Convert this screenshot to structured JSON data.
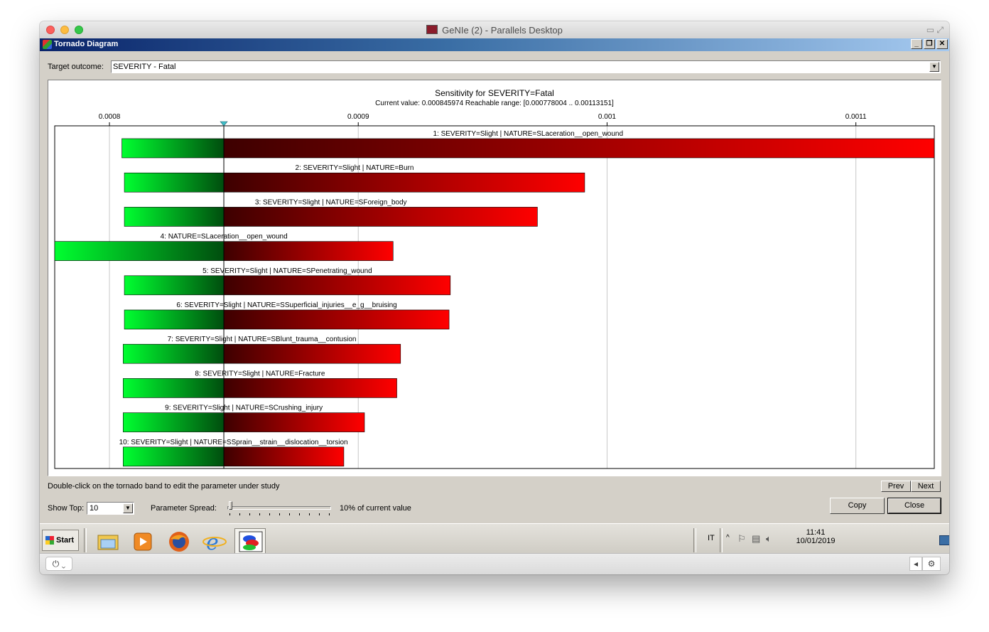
{
  "window": {
    "mac_title": "GeNIe (2) - Parallels Desktop",
    "dialog_title": "Tornado Diagram"
  },
  "target": {
    "label": "Target outcome:",
    "value": "SEVERITY - Fatal"
  },
  "chart_data": {
    "type": "tornado",
    "title": "Sensitivity for SEVERITY=Fatal",
    "subtitle": "Current value: 0.000845974  Reachable range: [0.000778004 .. 0.00113151]",
    "current_value": 0.000845974,
    "xlim": [
      0.000778004,
      0.00113151
    ],
    "x_ticks": [
      0.0008,
      0.0009,
      0.001,
      0.0011
    ],
    "x_tick_labels": [
      "0.0008",
      "0.0009",
      "0.001",
      "0.0011"
    ],
    "grid": true,
    "colors": {
      "low": "#00ff30",
      "low_dark": "#004d0e",
      "high_dark": "#3d0000",
      "high": "#ff0000"
    },
    "bars": [
      {
        "label": "1: SEVERITY=Slight | NATURE=SLaceration__open_wound",
        "low": 0.000805,
        "high": 0.00113151
      },
      {
        "label": "2: SEVERITY=Slight | NATURE=Burn",
        "low": 0.000806,
        "high": 0.000991
      },
      {
        "label": "3: SEVERITY=Slight | NATURE=SForeign_body",
        "low": 0.000806,
        "high": 0.000972
      },
      {
        "label": "4: NATURE=SLaceration__open_wound",
        "low": 0.000778004,
        "high": 0.000914
      },
      {
        "label": "5: SEVERITY=Slight | NATURE=SPenetrating_wound",
        "low": 0.000806,
        "high": 0.000937
      },
      {
        "label": "6: SEVERITY=Slight | NATURE=SSuperficial_injuries__e_g__bruising",
        "low": 0.000806,
        "high": 0.0009365
      },
      {
        "label": "7: SEVERITY=Slight | NATURE=SBlunt_trauma__contusion",
        "low": 0.0008055,
        "high": 0.000917
      },
      {
        "label": "8: SEVERITY=Slight | NATURE=Fracture",
        "low": 0.0008055,
        "high": 0.0009155
      },
      {
        "label": "9: SEVERITY=Slight | NATURE=SCrushing_injury",
        "low": 0.0008055,
        "high": 0.0009025
      },
      {
        "label": "10: SEVERITY=Slight | NATURE=SSprain__strain__dislocation__torsion",
        "low": 0.0008055,
        "high": 0.0008942
      }
    ]
  },
  "hint": "Double-click on the tornado band to edit the parameter under study",
  "nav": {
    "prev": "Prev",
    "next": "Next"
  },
  "controls": {
    "show_top_label": "Show Top:",
    "show_top_value": "10",
    "spread_label": "Parameter Spread:",
    "spread_value": "10% of current value",
    "copy": "Copy",
    "close": "Close"
  },
  "taskbar": {
    "start": "Start",
    "language": "IT",
    "time": "11:41",
    "date": "10/01/2019"
  }
}
